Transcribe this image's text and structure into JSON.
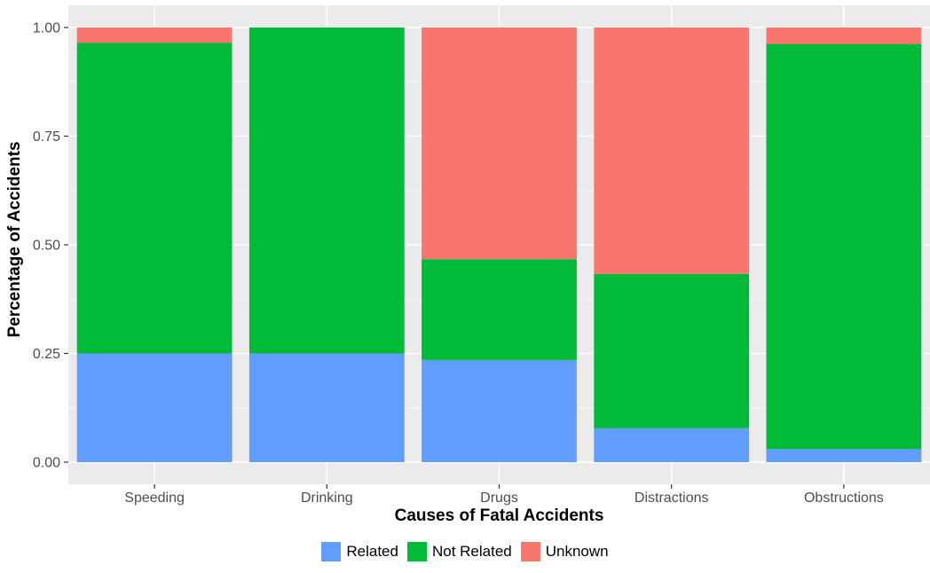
{
  "chart_data": {
    "type": "bar",
    "stacked": true,
    "title": "",
    "xlabel": "Causes of Fatal Accidents",
    "ylabel": "Percentage of Accidents",
    "ylim": [
      0,
      1.04
    ],
    "yticks": [
      "0.00",
      "0.25",
      "0.50",
      "0.75",
      "1.00"
    ],
    "categories": [
      "Speeding",
      "Drinking",
      "Drugs",
      "Distractions",
      "Obstructions"
    ],
    "series": [
      {
        "name": "Related",
        "color": "#619CFF",
        "values": [
          0.25,
          0.25,
          0.235,
          0.078,
          0.03
        ]
      },
      {
        "name": "Not Related",
        "color": "#00BA38",
        "values": [
          0.715,
          0.75,
          0.232,
          0.355,
          0.932
        ]
      },
      {
        "name": "Unknown",
        "color": "#F8766D",
        "values": [
          0.035,
          0.0,
          0.533,
          0.567,
          0.038
        ]
      }
    ],
    "grid": true,
    "legend_position": "bottom"
  }
}
